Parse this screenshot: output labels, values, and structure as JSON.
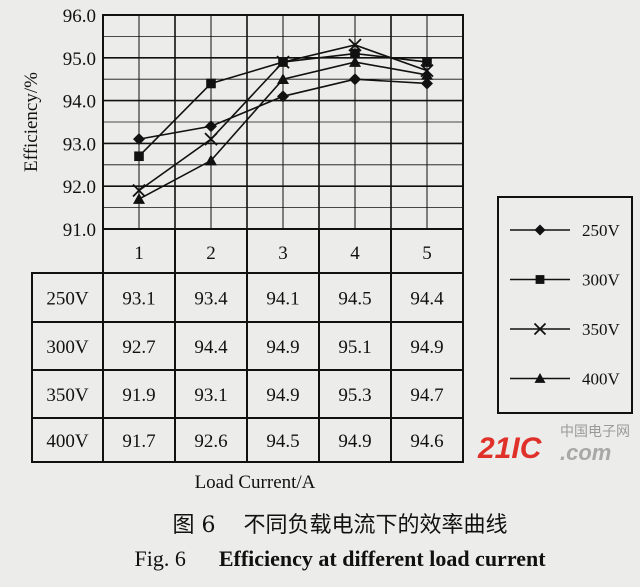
{
  "chart_data": {
    "type": "line",
    "ylabel": "Efficiency/%",
    "xlabel": "Load Current/A",
    "ylim": [
      91.0,
      96.0
    ],
    "yticks": [
      "96.0",
      "95.0",
      "94.0",
      "93.0",
      "92.0",
      "91.0"
    ],
    "categories": [
      "1",
      "2",
      "3",
      "4",
      "5"
    ],
    "grid": true,
    "legend_placement": "right",
    "series": [
      {
        "name": "250V",
        "marker": "diamond",
        "values": [
          93.1,
          93.4,
          94.1,
          94.5,
          94.4
        ]
      },
      {
        "name": "300V",
        "marker": "square",
        "values": [
          92.7,
          94.4,
          94.9,
          95.1,
          94.9
        ]
      },
      {
        "name": "350V",
        "marker": "x",
        "values": [
          91.9,
          93.1,
          94.9,
          95.3,
          94.7
        ]
      },
      {
        "name": "400V",
        "marker": "triangle",
        "values": [
          91.7,
          92.6,
          94.5,
          94.9,
          94.6
        ]
      }
    ],
    "table": {
      "rows": [
        {
          "label": "250V",
          "cells": [
            "93.1",
            "93.4",
            "94.1",
            "94.5",
            "94.4"
          ]
        },
        {
          "label": "300V",
          "cells": [
            "92.7",
            "94.4",
            "94.9",
            "95.1",
            "94.9"
          ]
        },
        {
          "label": "350V",
          "cells": [
            "91.9",
            "93.1",
            "94.9",
            "95.3",
            "94.7"
          ]
        },
        {
          "label": "400V",
          "cells": [
            "91.7",
            "92.6",
            "94.5",
            "94.9",
            "94.6"
          ]
        }
      ]
    }
  },
  "caption": {
    "cn": "图 6    不同负载电流下的效率曲线",
    "en_fig": "Fig. 6",
    "en_title": "Efficiency at different load current"
  },
  "watermark": {
    "logo": "21IC",
    "cn": "中国电子网",
    "suffix": ".com"
  },
  "colors": {
    "line": "#111111",
    "background": "#ececea",
    "watermark": "#e0302a"
  }
}
